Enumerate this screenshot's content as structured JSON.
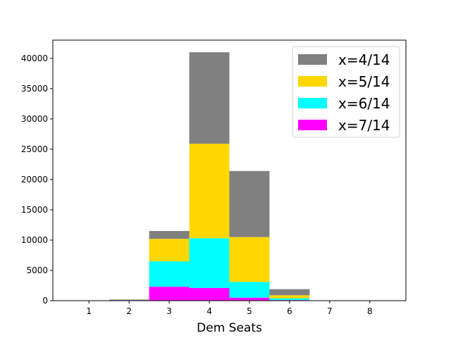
{
  "chart_data": {
    "type": "bar",
    "stacked": true,
    "x": [
      1,
      2,
      3,
      4,
      5,
      6,
      7,
      8
    ],
    "xlabel": "Dem Seats",
    "ylabel": "",
    "xticks": [
      "1",
      "2",
      "3",
      "4",
      "5",
      "6",
      "7",
      "8"
    ],
    "yticks": [
      "0",
      "5000",
      "10000",
      "15000",
      "20000",
      "25000",
      "30000",
      "35000",
      "40000"
    ],
    "xlim": [
      0.1,
      8.9
    ],
    "ylim": [
      0,
      43000
    ],
    "grid": false,
    "legend_position": "top-right",
    "series": [
      {
        "name": "x=4/14",
        "color": "#808080",
        "values": [
          0,
          50,
          1300,
          15100,
          10900,
          1000,
          0,
          0
        ]
      },
      {
        "name": "x=5/14",
        "color": "#ffd700",
        "values": [
          0,
          50,
          3700,
          15600,
          7400,
          500,
          0,
          0
        ]
      },
      {
        "name": "x=6/14",
        "color": "#00ffff",
        "values": [
          0,
          50,
          4200,
          8200,
          2600,
          300,
          0,
          0
        ]
      },
      {
        "name": "x=7/14",
        "color": "#ff00ff",
        "values": [
          0,
          100,
          2300,
          2100,
          500,
          100,
          0,
          0
        ]
      }
    ]
  }
}
